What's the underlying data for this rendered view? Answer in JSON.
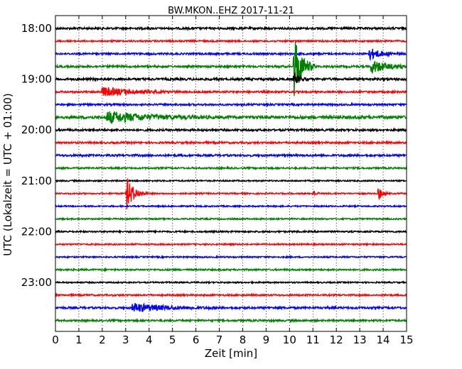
{
  "chart_data": {
    "type": "line",
    "title": "BW.MKON..EHZ 2017-11-21",
    "xlabel": "Zeit  [min]",
    "ylabel": "UTC (Lokalzeit = UTC + 01:00)",
    "xlim": [
      0,
      15
    ],
    "x_ticks": [
      0,
      1,
      2,
      3,
      4,
      5,
      6,
      7,
      8,
      9,
      10,
      11,
      12,
      13,
      14,
      15
    ],
    "x_tick_labels": [
      "0",
      "1",
      "2",
      "3",
      "4",
      "5",
      "6",
      "7",
      "8",
      "9",
      "10",
      "11",
      "12",
      "13",
      "14",
      "15"
    ],
    "grid": "x-dotted",
    "row_minutes": 15,
    "first_row_time": "18:00",
    "y_tick_labels": [
      "18:00",
      "19:00",
      "20:00",
      "21:00",
      "22:00",
      "23:00"
    ],
    "trace_colors": [
      "#000000",
      "#ff0000",
      "#0000ff",
      "#008000"
    ],
    "rows": [
      {
        "time": "18:00",
        "color": "#000000",
        "noise": 0.9,
        "events": []
      },
      {
        "time": "18:15",
        "color": "#ff0000",
        "noise": 0.7,
        "events": []
      },
      {
        "time": "18:30",
        "color": "#0000ff",
        "noise": 0.8,
        "events": [
          {
            "t": 13.4,
            "amp": 0.5,
            "dur": 0.5
          }
        ]
      },
      {
        "time": "18:45",
        "color": "#008000",
        "noise": 0.9,
        "events": [
          {
            "t": 10.2,
            "amp": 3.0,
            "dur": 0.3
          },
          {
            "t": 13.5,
            "amp": 0.6,
            "dur": 0.6
          }
        ]
      },
      {
        "time": "19:00",
        "color": "#000000",
        "noise": 1.0,
        "events": [
          {
            "t": 10.2,
            "amp": 0.6,
            "dur": 0.2
          }
        ]
      },
      {
        "time": "19:15",
        "color": "#ff0000",
        "noise": 0.8,
        "events": [
          {
            "t": 2.0,
            "amp": 0.4,
            "dur": 1.2
          }
        ]
      },
      {
        "time": "19:30",
        "color": "#0000ff",
        "noise": 0.8,
        "events": []
      },
      {
        "time": "19:45",
        "color": "#008000",
        "noise": 1.3,
        "events": [
          {
            "t": 2.2,
            "amp": 0.5,
            "dur": 1.5
          }
        ]
      },
      {
        "time": "20:00",
        "color": "#000000",
        "noise": 0.9,
        "events": []
      },
      {
        "time": "20:15",
        "color": "#ff0000",
        "noise": 0.8,
        "events": []
      },
      {
        "time": "20:30",
        "color": "#0000ff",
        "noise": 0.9,
        "events": []
      },
      {
        "time": "20:45",
        "color": "#008000",
        "noise": 0.7,
        "events": []
      },
      {
        "time": "21:00",
        "color": "#000000",
        "noise": 0.6,
        "events": []
      },
      {
        "time": "21:15",
        "color": "#ff0000",
        "noise": 0.6,
        "events": [
          {
            "t": 3.05,
            "amp": 1.4,
            "dur": 0.3
          },
          {
            "t": 11.0,
            "amp": 0.3,
            "dur": 0.1
          },
          {
            "t": 13.8,
            "amp": 0.6,
            "dur": 0.15
          }
        ]
      },
      {
        "time": "21:30",
        "color": "#0000ff",
        "noise": 0.6,
        "events": []
      },
      {
        "time": "21:45",
        "color": "#008000",
        "noise": 0.6,
        "events": []
      },
      {
        "time": "22:00",
        "color": "#000000",
        "noise": 0.7,
        "events": []
      },
      {
        "time": "22:15",
        "color": "#ff0000",
        "noise": 0.6,
        "events": []
      },
      {
        "time": "22:30",
        "color": "#0000ff",
        "noise": 0.6,
        "events": []
      },
      {
        "time": "22:45",
        "color": "#008000",
        "noise": 0.7,
        "events": []
      },
      {
        "time": "23:00",
        "color": "#000000",
        "noise": 0.6,
        "events": []
      },
      {
        "time": "23:15",
        "color": "#ff0000",
        "noise": 0.7,
        "events": []
      },
      {
        "time": "23:30",
        "color": "#0000ff",
        "noise": 0.9,
        "events": [
          {
            "t": 3.3,
            "amp": 0.4,
            "dur": 1.2
          }
        ]
      },
      {
        "time": "23:45",
        "color": "#008000",
        "noise": 0.8,
        "events": []
      }
    ]
  }
}
